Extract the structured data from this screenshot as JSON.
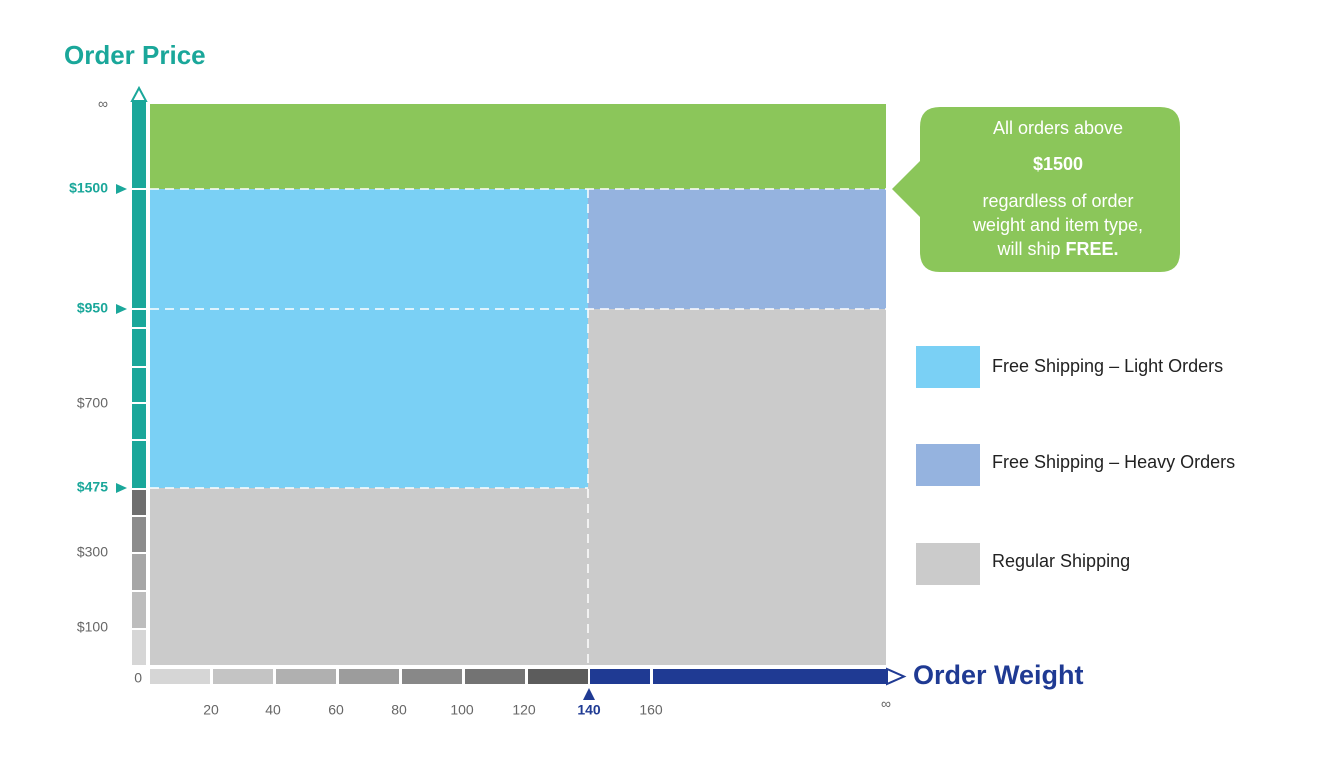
{
  "y_axis": {
    "title": "Order Price",
    "ticks": [
      "∞",
      "$1500",
      "$950",
      "$700",
      "$475",
      "$300",
      "$100",
      "0"
    ]
  },
  "x_axis": {
    "title": "Order Weight",
    "ticks": [
      "20",
      "40",
      "60",
      "80",
      "100",
      "120",
      "140",
      "160",
      "∞"
    ]
  },
  "callout": {
    "line1": "All orders above",
    "amount": "$1500",
    "line2": "regardless of order",
    "line3": "weight and item type,",
    "line4": "will ship",
    "line4_bold": "FREE."
  },
  "legend": [
    {
      "label": "Free Shipping – Light Orders"
    },
    {
      "label": "Free Shipping – Heavy Orders"
    },
    {
      "label": "Regular Shipping"
    }
  ]
}
